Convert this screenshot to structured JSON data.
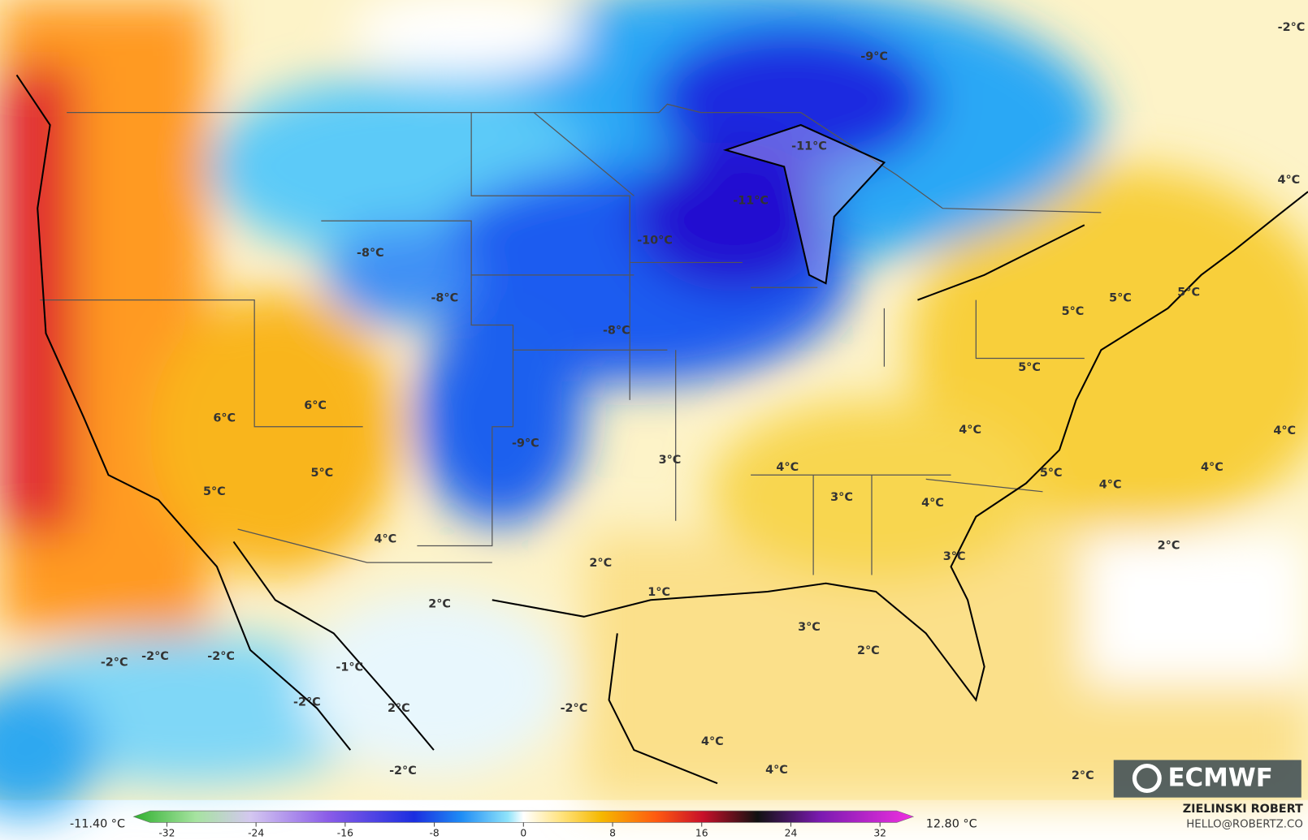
{
  "map": {
    "labels": [
      "-9°C",
      "-2°C",
      "-11°C",
      "-11°C",
      "-10°C",
      "-8°C",
      "-8°C",
      "-8°C",
      "4°C",
      "5°C",
      "5°C",
      "5°C",
      "5°C",
      "6°C",
      "6°C",
      "4°C",
      "4°C",
      "-9°C",
      "3°C",
      "4°C",
      "5°C",
      "5°C",
      "3°C",
      "4°C",
      "5°C",
      "4°C",
      "4°C",
      "4°C",
      "2°C",
      "2°C",
      "3°C",
      "1°C",
      "2°C",
      "3°C",
      "2°C",
      "-2°C",
      "-2°C",
      "-2°C",
      "-1°C",
      "-2°C",
      "2°C",
      "-2°C",
      "4°C",
      "4°C",
      "-2°C",
      "2°C"
    ]
  },
  "logo": {
    "text": "ECMWF"
  },
  "colorbar": {
    "min_label": "-11.40 °C",
    "max_label": "12.80 °C",
    "range": [
      -35,
      35
    ],
    "ticks": [
      -32,
      -24,
      -16,
      -8,
      0,
      8,
      16,
      24,
      32
    ]
  },
  "credit": {
    "name": "ZIELINSKI ROBERT",
    "contact": "HELLO@ROBERTZ.CO"
  }
}
